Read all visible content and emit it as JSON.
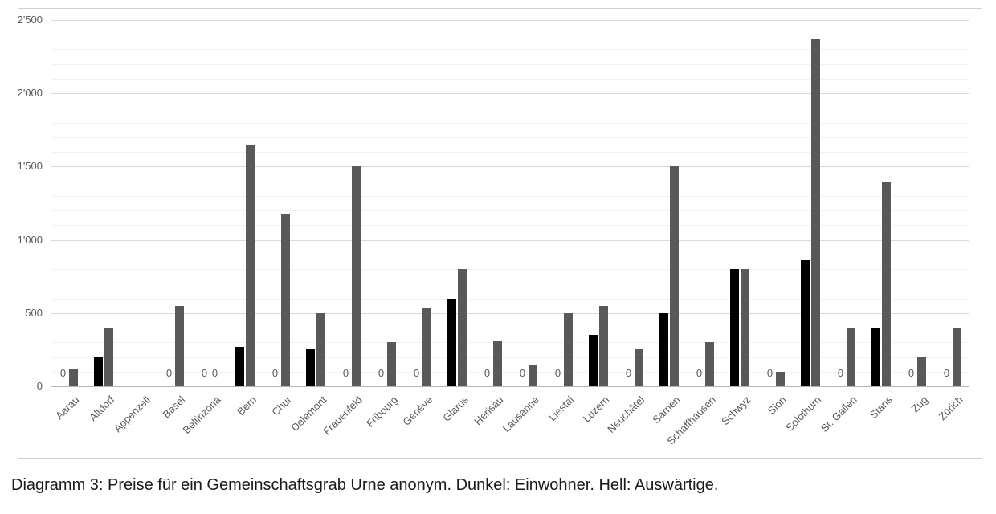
{
  "caption": "Diagramm 3: Preise für ein Gemeinschaftsgrab Urne anonym. Dunkel: Einwohner. Hell: Auswärtige.",
  "zero_value_label": "0",
  "chart_data": {
    "type": "bar",
    "title": "Preise für ein Gemeinschaftsgrab Urne anonym",
    "xlabel": "",
    "ylabel": "",
    "ylim": [
      0,
      2500
    ],
    "grid": "horizontal, minor every 100, major every 500",
    "legend_position": "none (explained in caption: Dunkel = Einwohner, Hell = Auswärtige)",
    "y_ticks": [
      {
        "value": 0,
        "label": "0"
      },
      {
        "value": 500,
        "label": "500"
      },
      {
        "value": 1000,
        "label": "1'000"
      },
      {
        "value": 1500,
        "label": "1'500"
      },
      {
        "value": 2000,
        "label": "2'000"
      },
      {
        "value": 2500,
        "label": "2'500"
      }
    ],
    "categories": [
      "Aarau",
      "Altdorf",
      "Appenzell",
      "Basel",
      "Bellinzona",
      "Bern",
      "Chur",
      "Delémont",
      "Frauenfeld",
      "Fribourg",
      "Genève",
      "Glarus",
      "Herisau",
      "Lausanne",
      "Liestal",
      "Luzern",
      "Neuchâtel",
      "Sarnen",
      "Schaffhausen",
      "Schwyz",
      "Sion",
      "Solothurn",
      "St. Gallen",
      "Stans",
      "Zug",
      "Zürich"
    ],
    "series": [
      {
        "name": "Einwohner",
        "shade": "dunkel",
        "color": "#000000",
        "values": [
          0,
          200,
          null,
          0,
          0,
          270,
          0,
          250,
          0,
          0,
          0,
          600,
          0,
          0,
          0,
          350,
          0,
          500,
          0,
          800,
          0,
          860,
          0,
          400,
          0,
          0
        ]
      },
      {
        "name": "Auswärtige",
        "shade": "hell",
        "color": "#595959",
        "values": [
          120,
          400,
          null,
          550,
          0,
          1650,
          1180,
          500,
          1500,
          300,
          540,
          800,
          310,
          140,
          500,
          550,
          250,
          1500,
          300,
          800,
          100,
          2370,
          400,
          1400,
          200,
          400
        ]
      }
    ]
  }
}
